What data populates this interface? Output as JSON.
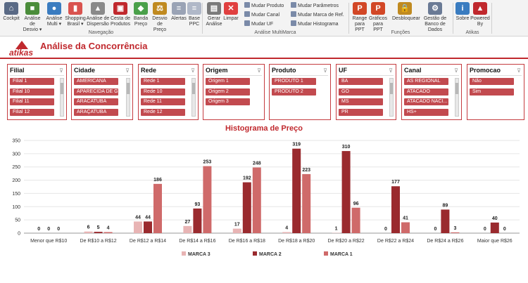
{
  "ribbon": {
    "buttons": [
      {
        "id": "cockpit",
        "label": "Cockpit",
        "icon": "home-icon",
        "glyph": "⌂",
        "color": "#5a6a85"
      },
      {
        "id": "analise-desvio",
        "label": "Análise de Desvio ▾",
        "icon": "cubes-icon",
        "glyph": "■",
        "color": "#4a8c3a"
      },
      {
        "id": "analise-multi",
        "label": "Análise Multi ▾",
        "icon": "globe-icon",
        "glyph": "●",
        "color": "#3a7cc0"
      },
      {
        "id": "shopping-brasil",
        "label": "Shopping Brasil ▾",
        "icon": "bars-icon",
        "glyph": "▮",
        "color": "#d9534f"
      },
      {
        "id": "analise-dispersao",
        "label": "Análise de Dispersão",
        "icon": "chart-icon",
        "glyph": "▲",
        "color": "#8a8a8a"
      },
      {
        "id": "cesta-produtos",
        "label": "Cesta de Produtos",
        "icon": "basket-icon",
        "glyph": "▣",
        "color": "#c0282d"
      },
      {
        "id": "banda-preco",
        "label": "Banda Preço",
        "icon": "tag-icon",
        "glyph": "◆",
        "color": "#4aa04a"
      },
      {
        "id": "desvio-preco",
        "label": "Desvio de Preço",
        "icon": "scale-icon",
        "glyph": "⚖",
        "color": "#c08a20"
      },
      {
        "id": "alertas",
        "label": "Alertas",
        "icon": "doc-icon",
        "glyph": "≡",
        "color": "#9aa3b5"
      },
      {
        "id": "base-ppc",
        "label": "Base PPC",
        "icon": "page-icon",
        "glyph": "≡",
        "color": "#b0b8c8"
      },
      {
        "id": "gerar-analise",
        "label": "Gerar Análise",
        "icon": "report-icon",
        "glyph": "▤",
        "color": "#7a7a7a"
      },
      {
        "id": "limpar",
        "label": "Limpar",
        "icon": "close-icon",
        "glyph": "✕",
        "color": "#e04040"
      },
      {
        "id": "range-ppt",
        "label": "Range para PPT",
        "icon": "ppt-icon",
        "glyph": "P",
        "color": "#d24726"
      },
      {
        "id": "graficos-ppt",
        "label": "Gráficos para PPT",
        "icon": "ppt-chart-icon",
        "glyph": "P",
        "color": "#d24726"
      },
      {
        "id": "desbloquear",
        "label": "Desbloquear",
        "icon": "lock-icon",
        "glyph": "🔒",
        "color": "#c08a20"
      },
      {
        "id": "gestao-bd",
        "label": "Gestão de Banco de Dados",
        "icon": "gears-icon",
        "glyph": "⚙",
        "color": "#6a7a95"
      },
      {
        "id": "sobre",
        "label": "Sobre",
        "icon": "info-icon",
        "glyph": "i",
        "color": "#3a7cc0"
      },
      {
        "id": "powered-by",
        "label": "Powered By",
        "icon": "atikas-icon",
        "glyph": "▲",
        "color": "#c0282d"
      }
    ],
    "multi": [
      {
        "label": "Mudar Produto",
        "icon": "produto-icon"
      },
      {
        "label": "Mudar Canal",
        "icon": "canal-icon"
      },
      {
        "label": "Mudar UF",
        "icon": "uf-icon"
      }
    ],
    "params": [
      {
        "label": "Mudar Parâmetros",
        "icon": "parametros-icon"
      },
      {
        "label": "Mudar Marca de Ref.",
        "icon": "marca-icon"
      },
      {
        "label": "Mudar Histograma",
        "icon": "histograma-icon"
      }
    ],
    "groups": {
      "navegacao": "Navegação",
      "multimarca": "Análise MultiMarca",
      "funcoes": "Funções",
      "atikas": "Atikas"
    }
  },
  "header": {
    "logo": "atikas",
    "title": "Análise da Concorrência"
  },
  "slicers": [
    {
      "title": "Filial",
      "items": [
        "Filial 1",
        "Filial 10",
        "Filial 11",
        "Filial 12"
      ],
      "scroll": true
    },
    {
      "title": "Cidade",
      "items": [
        "AMERICANA",
        "APARECIDA DE G...",
        "ARACATUBA",
        "ARAÇATUBA"
      ],
      "scroll": true
    },
    {
      "title": "Rede",
      "items": [
        "Rede 1",
        "Rede 10",
        "Rede 11",
        "Rede 12"
      ],
      "scroll": true
    },
    {
      "title": "Origem",
      "items": [
        "Origem 1",
        "Origem 2",
        "Origem 3"
      ],
      "scroll": false
    },
    {
      "title": "Produto",
      "items": [
        "PRODUTO 1",
        "PRODUTO 2"
      ],
      "scroll": false
    },
    {
      "title": "UF",
      "items": [
        "BA",
        "GO",
        "MS",
        "PR"
      ],
      "scroll": true
    },
    {
      "title": "Canal",
      "items": [
        "AS REGIONAL",
        "ATACADO",
        "ATACADO NACI...",
        "HS+"
      ],
      "scroll": true
    },
    {
      "title": "Promocao",
      "items": [
        "Não",
        "Sim"
      ],
      "scroll": false
    }
  ],
  "chart_title": "Histograma de Preço",
  "chart_data": {
    "type": "bar",
    "categories": [
      "Menor que R$10",
      "De R$10 a R$12",
      "De R$12 a R$14",
      "De R$14 a R$16",
      "De R$16 a R$18",
      "De R$18 a R$20",
      "De R$20 a R$22",
      "De R$22 a R$24",
      "De R$24 a R$26",
      "Maior que R$26"
    ],
    "series": [
      {
        "name": "MARCA 3",
        "color": "#e8b4b4",
        "values": [
          0,
          6,
          44,
          27,
          17,
          4,
          1,
          0,
          0,
          0
        ]
      },
      {
        "name": "MARCA 2",
        "color": "#9a2a2e",
        "values": [
          0,
          5,
          44,
          93,
          192,
          319,
          310,
          177,
          89,
          40
        ]
      },
      {
        "name": "MARCA 1",
        "color": "#cf6a6a",
        "values": [
          0,
          4,
          186,
          253,
          248,
          223,
          96,
          41,
          3,
          0
        ]
      }
    ],
    "ylim": [
      0,
      350
    ],
    "yticks": [
      0,
      50,
      100,
      150,
      200,
      250,
      300,
      350
    ],
    "legend": "bottom"
  }
}
